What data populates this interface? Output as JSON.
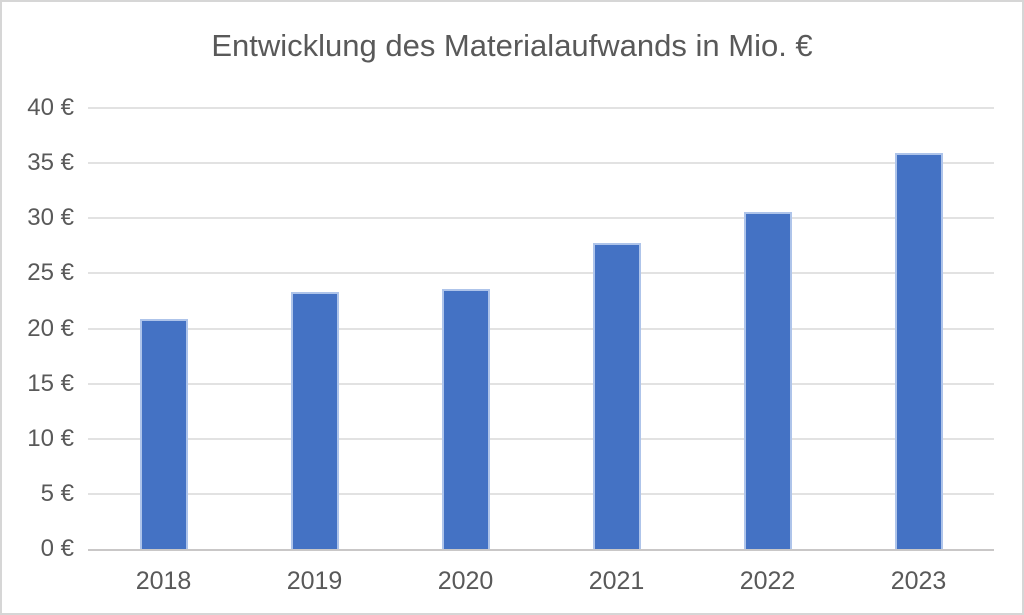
{
  "chart": {
    "background": "#ffffff",
    "frame_border_color": "#d6d6d6"
  },
  "chart_data": {
    "type": "bar",
    "title": "Entwicklung des Materialaufwands in Mio. €",
    "categories": [
      "2018",
      "2019",
      "2020",
      "2021",
      "2022",
      "2023"
    ],
    "values": [
      20.9,
      23.3,
      23.6,
      27.8,
      30.6,
      35.9
    ],
    "xlabel": "",
    "ylabel": "",
    "ylim": [
      0,
      40
    ],
    "ytick_step": 5,
    "y_tick_suffix": " €",
    "y_tick_labels": [
      "0 €",
      "5 €",
      "10 €",
      "15 €",
      "20 €",
      "25 €",
      "30 €",
      "35 €",
      "40 €"
    ],
    "grid": "horizontal",
    "legend": "none",
    "bar_color": "#4472C4",
    "bar_border_color": "#aec4ea",
    "gridline_color": "#e2e2e2",
    "axis_line_color": "#c9c7c7",
    "text_color": "#595959"
  }
}
